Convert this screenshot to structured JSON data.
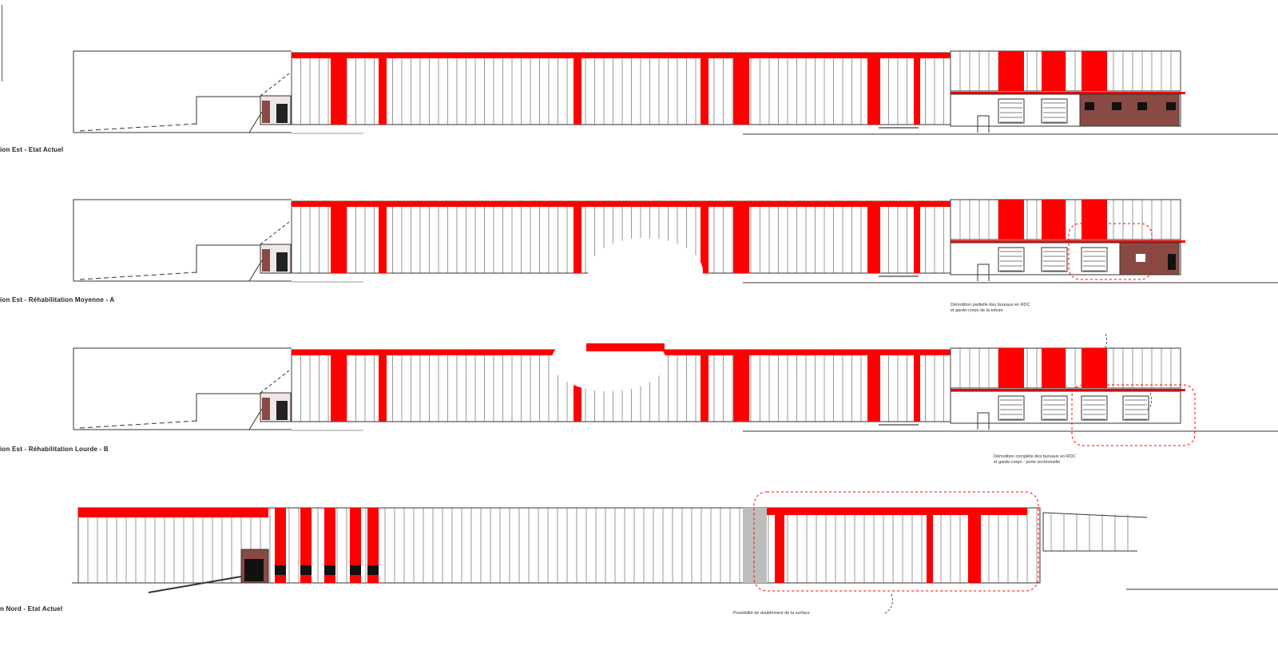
{
  "drawing": {
    "accent_color": "#ff0000",
    "line_color": "#333333",
    "brick_color": "#8a4a44",
    "elevations": [
      {
        "title": "ion Est - Etat Actuel"
      },
      {
        "title": "ion Est - Réhabilitation Moyenne - A",
        "note_line1": "Démolition partielle des bureaux en RDC",
        "note_line2": "et garde-corps de la toiture"
      },
      {
        "title": "ion Est - Réhabilitation Lourde - B",
        "note_line1": "Démolition complète des bureaux en RDC",
        "note_line2": "et garde-corps - porte sectionnelle"
      },
      {
        "title": "n Nord - Etat Actuel",
        "note_line1": "Possibilité de doublement de la surface"
      }
    ]
  }
}
